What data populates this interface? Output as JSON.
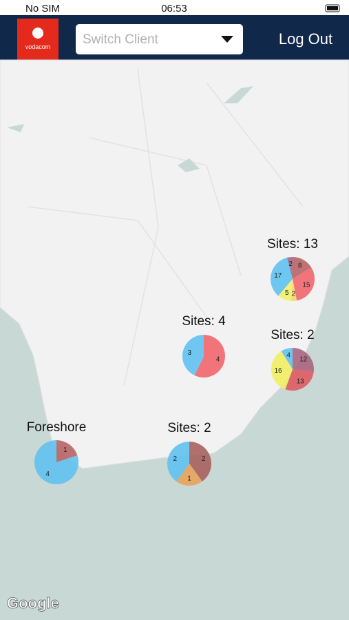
{
  "status_bar": {
    "carrier": "No SIM",
    "time": "06:53"
  },
  "header": {
    "logo": "vodacom",
    "dropdown": "Switch Client",
    "logout": "Log Out"
  },
  "map": {
    "attribution": "Google",
    "clusters": [
      {
        "label": "Sites: 13",
        "slices": [
          {
            "value": 8,
            "color": "#b86466"
          },
          {
            "value": 15,
            "color": "#f2666e"
          },
          {
            "value": 2,
            "color": "#f5d86a"
          },
          {
            "value": 5,
            "color": "#f3f06c"
          },
          {
            "value": 17,
            "color": "#5fc2ef"
          },
          {
            "value": 2,
            "color": "#9a6f8e"
          }
        ]
      },
      {
        "label": "Sites: 4",
        "slices": [
          {
            "value": 4,
            "color": "#f2666e"
          },
          {
            "value": 3,
            "color": "#5fc2ef"
          }
        ]
      },
      {
        "label": "Sites: 2",
        "slices": [
          {
            "value": 12,
            "color": "#a8657e"
          },
          {
            "value": 13,
            "color": "#de5c62"
          },
          {
            "value": 16,
            "color": "#f1ee62"
          },
          {
            "value": 4,
            "color": "#5fc2ef"
          }
        ]
      },
      {
        "label": "Foreshore",
        "slices": [
          {
            "value": 1,
            "color": "#b86466"
          },
          {
            "value": 4,
            "color": "#5fc2ef"
          }
        ]
      },
      {
        "label": "Sites: 2",
        "slices": [
          {
            "value": 2,
            "color": "#a8625e"
          },
          {
            "value": 1,
            "color": "#e8a35a"
          },
          {
            "value": 2,
            "color": "#5fc2ef"
          }
        ]
      }
    ]
  }
}
